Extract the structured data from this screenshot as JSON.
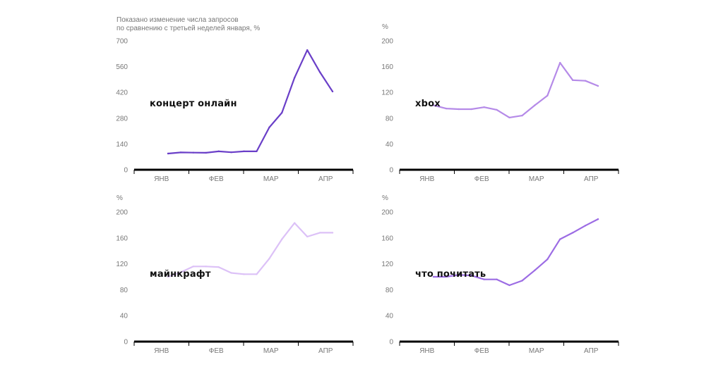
{
  "note_lines": [
    "Показано изменение числа запросов",
    "по сравнению с третьей неделей января, %"
  ],
  "chart_data": [
    {
      "type": "line",
      "label": "концерт онлайн",
      "unit": "",
      "color": "#6a3fc8",
      "ylim": [
        0,
        700
      ],
      "yticks": [
        0,
        140,
        280,
        420,
        560,
        700
      ],
      "months": [
        "ЯНВ",
        "ФЕВ",
        "МАР",
        "АПР"
      ],
      "values": [
        88,
        94,
        93,
        92,
        100,
        95,
        100,
        100,
        230,
        310,
        500,
        650,
        530,
        425
      ]
    },
    {
      "type": "line",
      "label": "xbox",
      "unit": "%",
      "color": "#b58ae8",
      "ylim": [
        0,
        200
      ],
      "yticks": [
        0,
        40,
        80,
        120,
        160,
        200
      ],
      "months": [
        "ЯНВ",
        "ФЕВ",
        "МАР",
        "АПР"
      ],
      "values": [
        100,
        95,
        94,
        94,
        97,
        93,
        81,
        84,
        100,
        115,
        166,
        139,
        138,
        130
      ]
    },
    {
      "type": "line",
      "label": "майнкрафт",
      "unit": "%",
      "color": "#dcc1f7",
      "ylim": [
        0,
        200
      ],
      "yticks": [
        0,
        40,
        80,
        120,
        160,
        200
      ],
      "months": [
        "ЯНВ",
        "ФЕВ",
        "МАР",
        "АПР"
      ],
      "values": [
        100,
        107,
        116,
        116,
        115,
        106,
        104,
        104,
        128,
        158,
        183,
        162,
        168,
        168
      ]
    },
    {
      "type": "line",
      "label": "что почитать",
      "unit": "%",
      "color": "#9c6ce4",
      "ylim": [
        0,
        200
      ],
      "yticks": [
        0,
        40,
        80,
        120,
        160,
        200
      ],
      "months": [
        "ЯНВ",
        "ФЕВ",
        "МАР",
        "АПР"
      ],
      "values": [
        100,
        100,
        103,
        102,
        96,
        96,
        87,
        94,
        110,
        127,
        158,
        168,
        179,
        189
      ]
    }
  ]
}
